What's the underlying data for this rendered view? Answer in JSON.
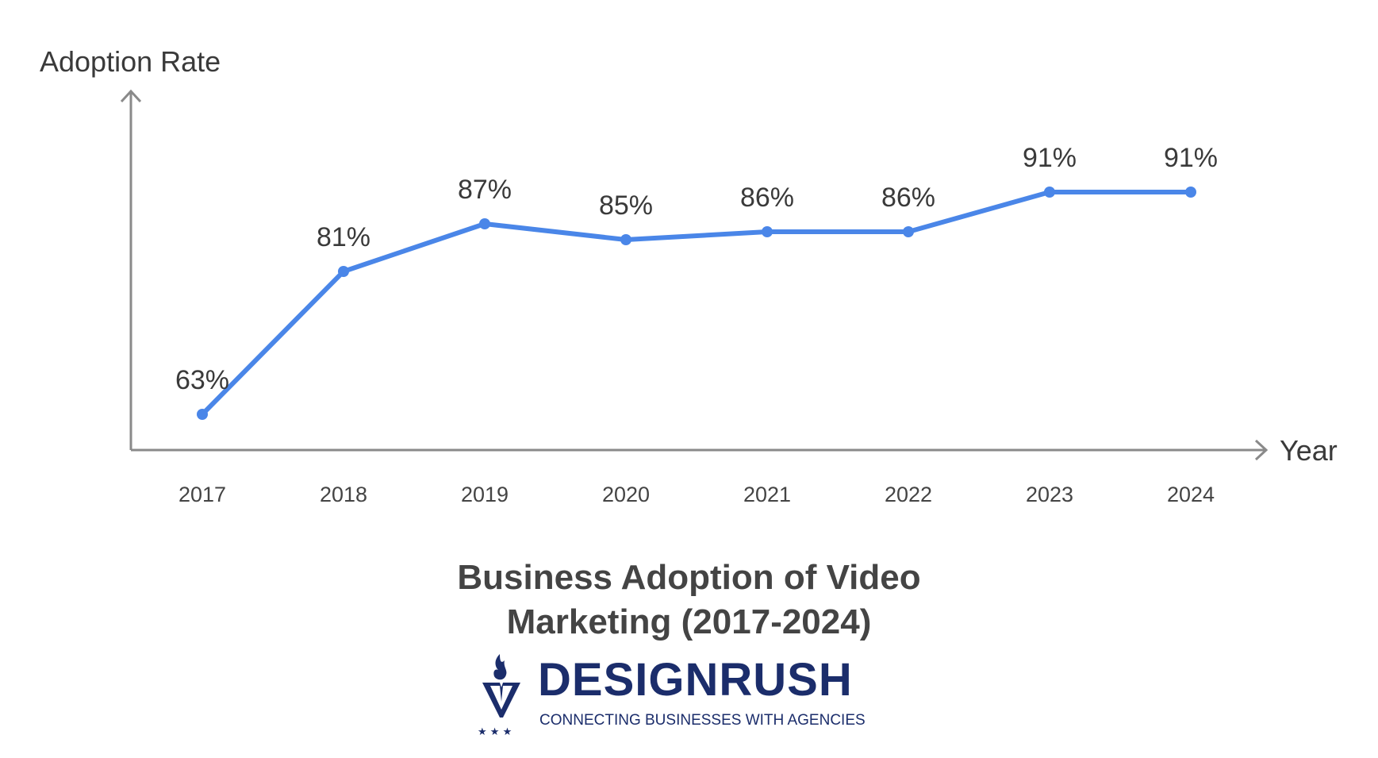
{
  "chart_data": {
    "type": "line",
    "title_lines": [
      "Business Adoption of Video",
      "Marketing (2017-2024)"
    ],
    "xlabel": "Year",
    "ylabel": "Adoption Rate",
    "categories": [
      "2017",
      "2018",
      "2019",
      "2020",
      "2021",
      "2022",
      "2023",
      "2024"
    ],
    "series": [
      {
        "values": [
          63,
          81,
          87,
          85,
          86,
          86,
          91,
          91
        ],
        "labels": [
          "63%",
          "81%",
          "87%",
          "85%",
          "86%",
          "86%",
          "91%",
          "91%"
        ],
        "color": "#4a86e8"
      }
    ],
    "ylim": [
      59,
      100
    ],
    "grid": false,
    "legend": "none"
  },
  "brand": {
    "name": "DESIGNRUSH",
    "tagline": "CONNECTING BUSINESSES WITH AGENCIES",
    "color": "#1b2d6b"
  },
  "colors": {
    "axis": "#8a8a8a",
    "text": "#3a3a3a"
  }
}
